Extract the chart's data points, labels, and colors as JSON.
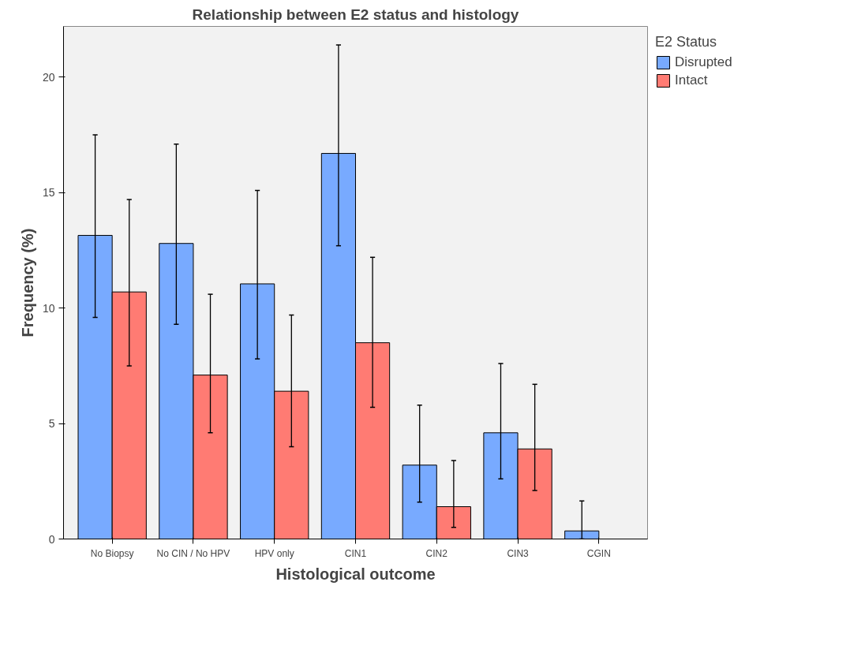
{
  "chart_data": {
    "type": "bar",
    "title": "Relationship between E2 status and histology",
    "xlabel": "Histological outcome",
    "ylabel": "Frequency (%)",
    "legend_title": "E2 Status",
    "categories": [
      "No Biopsy",
      "No CIN / No HPV",
      "HPV only",
      "CIN1",
      "CIN2",
      "CIN3",
      "CGIN"
    ],
    "series": [
      {
        "name": "Disrupted",
        "color": "#78aaff",
        "values": [
          13.15,
          12.8,
          11.05,
          16.7,
          3.2,
          4.6,
          0.35
        ],
        "errors": [
          [
            9.6,
            17.5
          ],
          [
            9.3,
            17.1
          ],
          [
            7.8,
            15.1
          ],
          [
            12.7,
            21.4
          ],
          [
            1.6,
            5.8
          ],
          [
            2.6,
            7.6
          ],
          [
            0.0,
            1.65
          ]
        ]
      },
      {
        "name": "Intact",
        "color": "#ff7b73",
        "values": [
          10.7,
          7.1,
          6.4,
          8.5,
          1.4,
          3.9,
          0
        ],
        "errors": [
          [
            7.5,
            14.7
          ],
          [
            4.6,
            10.6
          ],
          [
            4.0,
            9.7
          ],
          [
            5.7,
            12.2
          ],
          [
            0.5,
            3.4
          ],
          [
            2.1,
            6.7
          ],
          null
        ]
      }
    ],
    "ylim": [
      0,
      22.2
    ],
    "yticks": [
      0,
      5,
      10,
      15,
      20
    ],
    "grid": false,
    "legend": "top right"
  }
}
